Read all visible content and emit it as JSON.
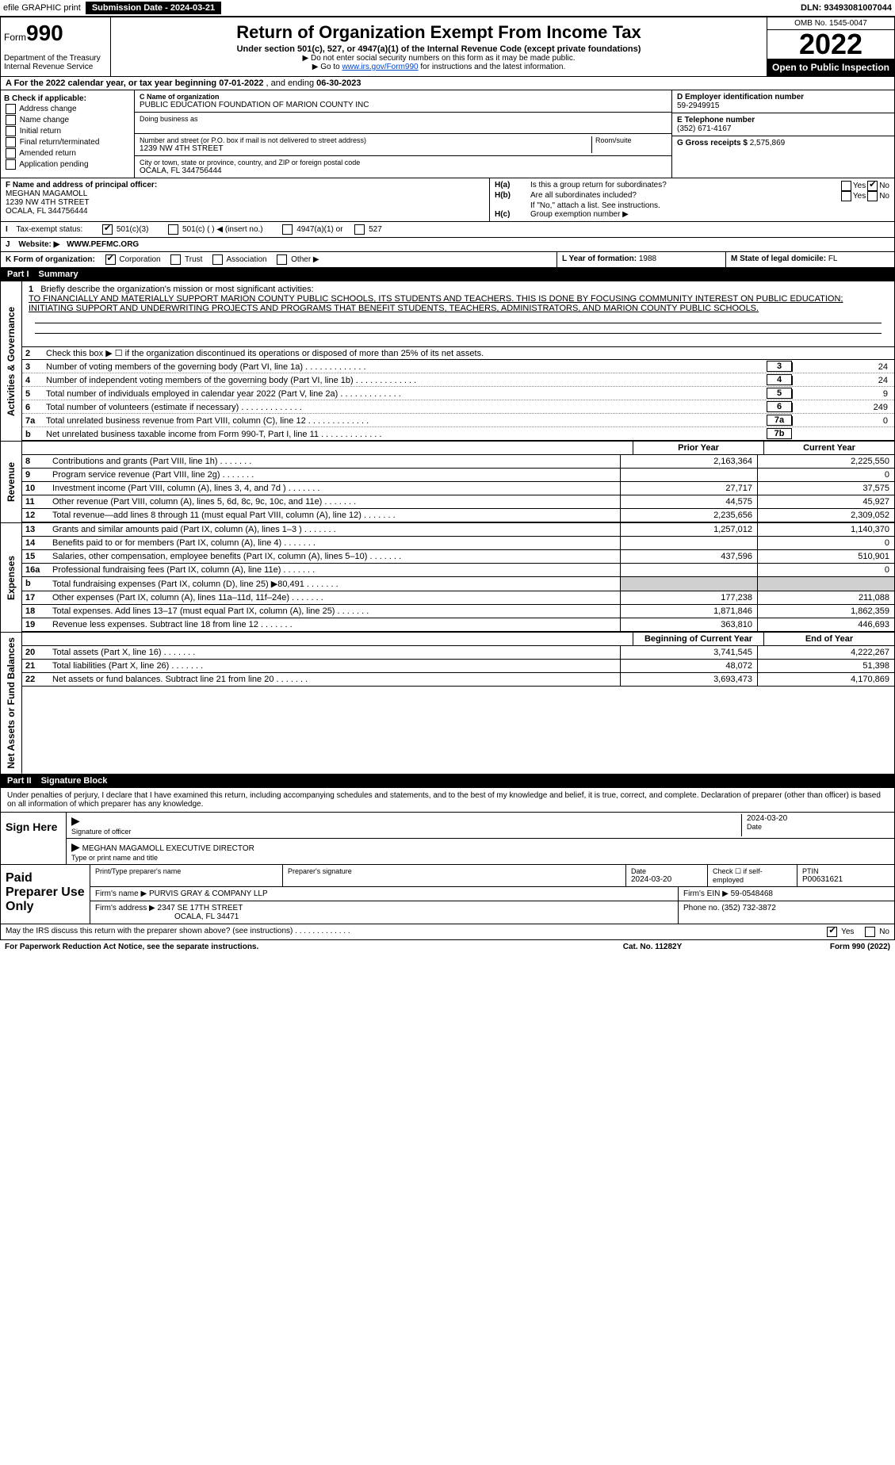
{
  "topbar": {
    "efile_label": "efile GRAPHIC print",
    "submission_label": "Submission Date - 2024-03-21",
    "dln_label": "DLN: 93493081007044"
  },
  "header": {
    "form_word": "Form",
    "form_number": "990",
    "title": "Return of Organization Exempt From Income Tax",
    "subtitle": "Under section 501(c), 527, or 4947(a)(1) of the Internal Revenue Code (except private foundations)",
    "note1": "▶ Do not enter social security numbers on this form as it may be made public.",
    "note2_prefix": "▶ Go to ",
    "note2_link": "www.irs.gov/Form990",
    "note2_suffix": " for instructions and the latest information.",
    "dept1": "Department of the Treasury",
    "dept2": "Internal Revenue Service",
    "omb": "OMB No. 1545-0047",
    "year": "2022",
    "open": "Open to Public Inspection"
  },
  "row_a": {
    "label": "A For the 2022 calendar year, or tax year beginning ",
    "begin": "07-01-2022",
    "mid": " , and ending ",
    "end": "06-30-2023"
  },
  "check_b": {
    "header": "B Check if applicable:",
    "items": [
      "Address change",
      "Name change",
      "Initial return",
      "Final return/terminated",
      "Amended return",
      "Application pending"
    ]
  },
  "org": {
    "c_label": "C Name of organization",
    "name": "PUBLIC EDUCATION FOUNDATION OF MARION COUNTY INC",
    "dba_label": "Doing business as",
    "dba": "",
    "addr_label": "Number and street (or P.O. box if mail is not delivered to street address)",
    "room_label": "Room/suite",
    "addr": "1239 NW 4TH STREET",
    "city_label": "City or town, state or province, country, and ZIP or foreign postal code",
    "city": "OCALA, FL  344756444"
  },
  "col_d": {
    "label": "D Employer identification number",
    "ein": "59-2949915",
    "e_label": "E Telephone number",
    "phone": "(352) 671-4167",
    "g_label": "G Gross receipts $ ",
    "gross": "2,575,869"
  },
  "officer": {
    "f_label": "F Name and address of principal officer:",
    "name": "MEGHAN MAGAMOLL",
    "addr1": "1239 NW 4TH STREET",
    "addr2": "OCALA, FL  344756444"
  },
  "h": {
    "ha_label": "H(a)",
    "ha_text": "Is this a group return for subordinates?",
    "ha_yes": "Yes",
    "ha_no": "No",
    "hb_label": "H(b)",
    "hb_text": "Are all subordinates included?",
    "hb_note": "If \"No,\" attach a list. See instructions.",
    "hc_label": "H(c)",
    "hc_text": "Group exemption number ▶"
  },
  "tax_status": {
    "i_label": "I",
    "label": "Tax-exempt status:",
    "opt1": "501(c)(3)",
    "opt2": "501(c) (   ) ◀ (insert no.)",
    "opt3": "4947(a)(1) or",
    "opt4": "527"
  },
  "website": {
    "j_label": "J",
    "label": "Website: ▶",
    "value": "WWW.PEFMC.ORG"
  },
  "k_row": {
    "k_label": "K Form of organization:",
    "opts": [
      "Corporation",
      "Trust",
      "Association",
      "Other ▶"
    ],
    "l_label": "L Year of formation: ",
    "l_val": "1988",
    "m_label": "M State of legal domicile: ",
    "m_val": "FL"
  },
  "part1": {
    "label": "Part I",
    "title": "Summary"
  },
  "vtabs": {
    "gov": "Activities & Governance",
    "rev": "Revenue",
    "exp": "Expenses",
    "net": "Net Assets or Fund Balances"
  },
  "mission": {
    "line1_num": "1",
    "line1_label": "Briefly describe the organization's mission or most significant activities:",
    "text": "TO FINANCIALLY AND MATERIALLY SUPPORT MARION COUNTY PUBLIC SCHOOLS, ITS STUDENTS AND TEACHERS. THIS IS DONE BY FOCUSING COMMUNITY INTEREST ON PUBLIC EDUCATION; INITIATING SUPPORT AND UNDERWRITING PROJECTS AND PROGRAMS THAT BENEFIT STUDENTS, TEACHERS, ADMINISTRATORS, AND MARION COUNTY PUBLIC SCHOOLS."
  },
  "gov_lines": {
    "l2": "Check this box ▶ ☐ if the organization discontinued its operations or disposed of more than 25% of its net assets.",
    "l3": "Number of voting members of the governing body (Part VI, line 1a)",
    "v3": "24",
    "l4": "Number of independent voting members of the governing body (Part VI, line 1b)",
    "v4": "24",
    "l5": "Total number of individuals employed in calendar year 2022 (Part V, line 2a)",
    "v5": "9",
    "l6": "Total number of volunteers (estimate if necessary)",
    "v6": "249",
    "l7a": "Total unrelated business revenue from Part VIII, column (C), line 12",
    "v7a": "0",
    "l7b": "Net unrelated business taxable income from Form 990-T, Part I, line 11",
    "v7b": ""
  },
  "col_headers": {
    "prior": "Prior Year",
    "current": "Current Year",
    "begin": "Beginning of Current Year",
    "end": "End of Year"
  },
  "rev_lines": [
    {
      "n": "8",
      "t": "Contributions and grants (Part VIII, line 1h)",
      "p": "2,163,364",
      "c": "2,225,550"
    },
    {
      "n": "9",
      "t": "Program service revenue (Part VIII, line 2g)",
      "p": "",
      "c": "0"
    },
    {
      "n": "10",
      "t": "Investment income (Part VIII, column (A), lines 3, 4, and 7d )",
      "p": "27,717",
      "c": "37,575"
    },
    {
      "n": "11",
      "t": "Other revenue (Part VIII, column (A), lines 5, 6d, 8c, 9c, 10c, and 11e)",
      "p": "44,575",
      "c": "45,927"
    },
    {
      "n": "12",
      "t": "Total revenue—add lines 8 through 11 (must equal Part VIII, column (A), line 12)",
      "p": "2,235,656",
      "c": "2,309,052"
    }
  ],
  "exp_lines": [
    {
      "n": "13",
      "t": "Grants and similar amounts paid (Part IX, column (A), lines 1–3 )",
      "p": "1,257,012",
      "c": "1,140,370"
    },
    {
      "n": "14",
      "t": "Benefits paid to or for members (Part IX, column (A), line 4)",
      "p": "",
      "c": "0"
    },
    {
      "n": "15",
      "t": "Salaries, other compensation, employee benefits (Part IX, column (A), lines 5–10)",
      "p": "437,596",
      "c": "510,901"
    },
    {
      "n": "16a",
      "t": "Professional fundraising fees (Part IX, column (A), line 11e)",
      "p": "",
      "c": "0"
    },
    {
      "n": "b",
      "t": "Total fundraising expenses (Part IX, column (D), line 25) ▶80,491",
      "p": "",
      "c": "",
      "shade": true
    },
    {
      "n": "17",
      "t": "Other expenses (Part IX, column (A), lines 11a–11d, 11f–24e)",
      "p": "177,238",
      "c": "211,088"
    },
    {
      "n": "18",
      "t": "Total expenses. Add lines 13–17 (must equal Part IX, column (A), line 25)",
      "p": "1,871,846",
      "c": "1,862,359"
    },
    {
      "n": "19",
      "t": "Revenue less expenses. Subtract line 18 from line 12",
      "p": "363,810",
      "c": "446,693"
    }
  ],
  "net_lines": [
    {
      "n": "20",
      "t": "Total assets (Part X, line 16)",
      "p": "3,741,545",
      "c": "4,222,267"
    },
    {
      "n": "21",
      "t": "Total liabilities (Part X, line 26)",
      "p": "48,072",
      "c": "51,398"
    },
    {
      "n": "22",
      "t": "Net assets or fund balances. Subtract line 21 from line 20",
      "p": "3,693,473",
      "c": "4,170,869"
    }
  ],
  "part2": {
    "label": "Part II",
    "title": "Signature Block"
  },
  "sig": {
    "penalty": "Under penalties of perjury, I declare that I have examined this return, including accompanying schedules and statements, and to the best of my knowledge and belief, it is true, correct, and complete. Declaration of preparer (other than officer) is based on all information of which preparer has any knowledge.",
    "sign_here": "Sign Here",
    "sig_officer_label": "Signature of officer",
    "date_label": "Date",
    "sig_date": "2024-03-20",
    "name_title": "MEGHAN MAGAMOLL  EXECUTIVE DIRECTOR",
    "name_title_label": "Type or print name and title"
  },
  "prep": {
    "label": "Paid Preparer Use Only",
    "r1": {
      "c1_label": "Print/Type preparer's name",
      "c1": "",
      "c2_label": "Preparer's signature",
      "c3_label": "Date",
      "c3": "2024-03-20",
      "c4_label": "Check ☐ if self-employed",
      "c5_label": "PTIN",
      "c5": "P00631621"
    },
    "r2": {
      "label": "Firm's name    ▶",
      "val": "PURVIS GRAY & COMPANY LLP",
      "ein_label": "Firm's EIN ▶",
      "ein": "59-0548468"
    },
    "r3": {
      "label": "Firm's address ▶",
      "val1": "2347 SE 17TH STREET",
      "val2": "OCALA, FL  34471",
      "phone_label": "Phone no.",
      "phone": "(352) 732-3872"
    }
  },
  "discuss": {
    "text": "May the IRS discuss this return with the preparer shown above? (see instructions)",
    "yes": "Yes",
    "no": "No"
  },
  "footer": {
    "left": "For Paperwork Reduction Act Notice, see the separate instructions.",
    "mid": "Cat. No. 11282Y",
    "right": "Form 990 (2022)"
  }
}
